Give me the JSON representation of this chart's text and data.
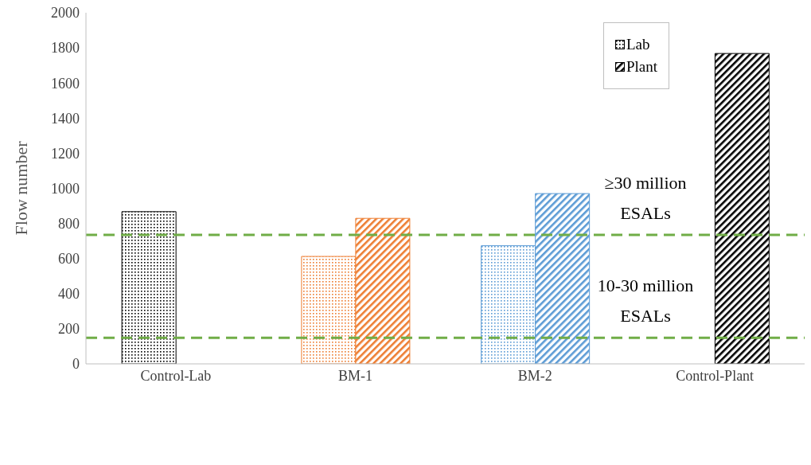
{
  "chart_data": {
    "type": "bar",
    "ylabel": "Flow number",
    "categories": [
      "Control-Lab",
      "BM-1",
      "BM-2",
      "Control-Plant"
    ],
    "series": [
      {
        "name": "Lab",
        "color": "#000000",
        "colors": [
          "#000000",
          "#ed7d31",
          "#5b9bd5",
          "#000000"
        ],
        "values": [
          867,
          612,
          673,
          null
        ]
      },
      {
        "name": "Plant",
        "color": "#000000",
        "colors": [
          "#000000",
          "#ed7d31",
          "#5b9bd5",
          "#000000"
        ],
        "values": [
          null,
          829,
          970,
          1768
        ]
      }
    ],
    "ylim": [
      0,
      2000
    ],
    "yticks": [
      0,
      200,
      400,
      600,
      800,
      1000,
      1200,
      1400,
      1600,
      1800,
      2000
    ],
    "grid": false,
    "legend": "top right",
    "ref_lines": [
      {
        "axis": "y",
        "value": 735,
        "label": "≥30 million ESALs",
        "color": "#70ad47",
        "line_style": "dashed"
      },
      {
        "axis": "y",
        "value": 148,
        "label": "10-30 million ESALs",
        "color": "#70ad47",
        "line_style": "dashed"
      }
    ]
  }
}
